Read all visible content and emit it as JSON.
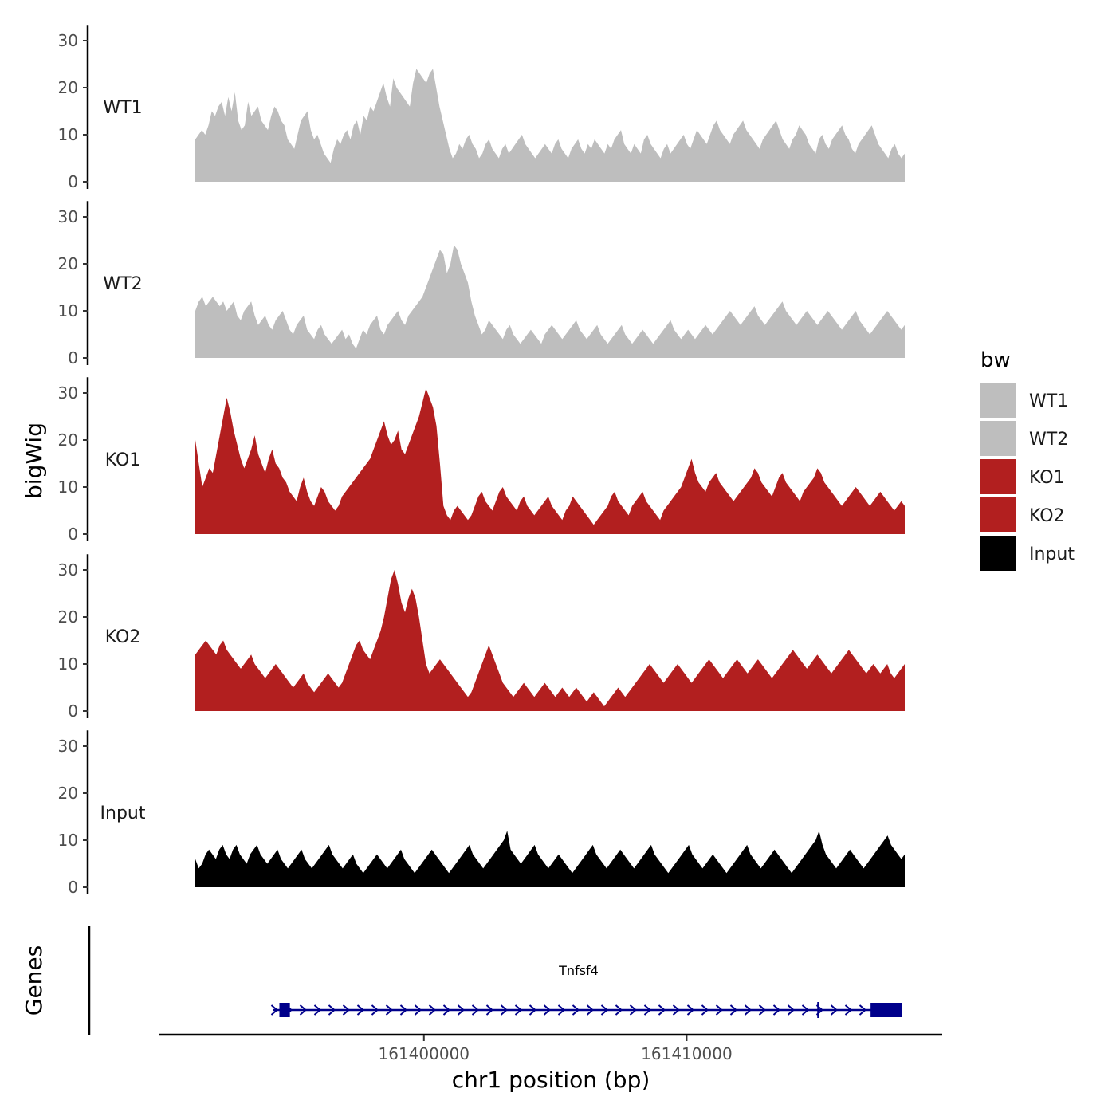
{
  "chart_data": {
    "type": "area",
    "ylabel": "bigWig",
    "xlabel": "chr1 position (bp)",
    "y_ticks": [
      "0",
      "10",
      "20",
      "30"
    ],
    "ylim": [
      0,
      33
    ],
    "x_range": [
      161391300,
      161418300
    ],
    "x_ticks": [
      {
        "value": 161400000,
        "label": "161400000"
      },
      {
        "value": 161410000,
        "label": "161410000"
      }
    ],
    "legend": {
      "title": "bw",
      "placement": "right",
      "entries": [
        {
          "label": "WT1",
          "color": "#bebebe"
        },
        {
          "label": "WT2",
          "color": "#bebebe"
        },
        {
          "label": "KO1",
          "color": "#b21f1f"
        },
        {
          "label": "KO2",
          "color": "#b21f1f"
        },
        {
          "label": "Input",
          "color": "#000000"
        }
      ]
    },
    "tracks": [
      {
        "name": "WT1",
        "color": "#bebebe",
        "values": [
          9,
          10,
          11,
          10,
          12,
          15,
          14,
          16,
          17,
          14,
          18,
          15,
          19,
          13,
          11,
          12,
          17,
          14,
          15,
          16,
          13,
          12,
          11,
          14,
          16,
          15,
          13,
          12,
          9,
          8,
          7,
          10,
          13,
          14,
          15,
          11,
          9,
          10,
          8,
          6,
          5,
          4,
          7,
          9,
          8,
          10,
          11,
          9,
          12,
          13,
          10,
          14,
          13,
          16,
          15,
          17,
          19,
          21,
          18,
          16,
          22,
          20,
          19,
          18,
          17,
          16,
          21,
          24,
          23,
          22,
          21,
          23,
          24,
          20,
          16,
          13,
          10,
          7,
          5,
          6,
          8,
          7,
          9,
          10,
          8,
          7,
          5,
          6,
          8,
          9,
          7,
          6,
          5,
          7,
          8,
          6,
          7,
          8,
          9,
          10,
          8,
          7,
          6,
          5,
          6,
          7,
          8,
          7,
          6,
          8,
          9,
          7,
          6,
          5,
          7,
          8,
          9,
          7,
          6,
          8,
          7,
          9,
          8,
          7,
          6,
          8,
          7,
          9,
          10,
          11,
          8,
          7,
          6,
          8,
          7,
          6,
          9,
          10,
          8,
          7,
          6,
          5,
          7,
          8,
          6,
          7,
          8,
          9,
          10,
          8,
          7,
          9,
          11,
          10,
          9,
          8,
          10,
          12,
          13,
          11,
          10,
          9,
          8,
          10,
          11,
          12,
          13,
          11,
          10,
          9,
          8,
          7,
          9,
          10,
          11,
          12,
          13,
          11,
          9,
          8,
          7,
          9,
          10,
          12,
          11,
          10,
          8,
          7,
          6,
          9,
          10,
          8,
          7,
          9,
          10,
          11,
          12,
          10,
          9,
          7,
          6,
          8,
          9,
          10,
          11,
          12,
          10,
          8,
          7,
          6,
          5,
          7,
          8,
          6,
          5,
          6
        ]
      },
      {
        "name": "WT2",
        "color": "#bebebe",
        "values": [
          10,
          12,
          13,
          11,
          12,
          13,
          12,
          11,
          12,
          10,
          11,
          12,
          9,
          8,
          10,
          11,
          12,
          9,
          7,
          8,
          9,
          7,
          6,
          8,
          9,
          10,
          8,
          6,
          5,
          7,
          8,
          9,
          6,
          5,
          4,
          6,
          7,
          5,
          4,
          3,
          4,
          5,
          6,
          4,
          5,
          3,
          2,
          4,
          6,
          5,
          7,
          8,
          9,
          6,
          5,
          7,
          8,
          9,
          10,
          8,
          7,
          9,
          10,
          11,
          12,
          13,
          15,
          17,
          19,
          21,
          23,
          22,
          18,
          20,
          24,
          23,
          20,
          18,
          16,
          12,
          9,
          7,
          5,
          6,
          8,
          7,
          6,
          5,
          4,
          6,
          7,
          5,
          4,
          3,
          4,
          5,
          6,
          5,
          4,
          3,
          5,
          6,
          7,
          6,
          5,
          4,
          5,
          6,
          7,
          8,
          6,
          5,
          4,
          5,
          6,
          7,
          5,
          4,
          3,
          4,
          5,
          6,
          7,
          5,
          4,
          3,
          4,
          5,
          6,
          5,
          4,
          3,
          4,
          5,
          6,
          7,
          8,
          6,
          5,
          4,
          5,
          6,
          5,
          4,
          5,
          6,
          7,
          6,
          5,
          6,
          7,
          8,
          9,
          10,
          9,
          8,
          7,
          8,
          9,
          10,
          11,
          9,
          8,
          7,
          8,
          9,
          10,
          11,
          12,
          10,
          9,
          8,
          7,
          8,
          9,
          10,
          9,
          8,
          7,
          8,
          9,
          10,
          9,
          8,
          7,
          6,
          7,
          8,
          9,
          10,
          8,
          7,
          6,
          5,
          6,
          7,
          8,
          9,
          10,
          9,
          8,
          7,
          6,
          7
        ]
      },
      {
        "name": "KO1",
        "color": "#b21f1f",
        "values": [
          20,
          15,
          10,
          12,
          14,
          13,
          17,
          21,
          25,
          29,
          26,
          22,
          19,
          16,
          14,
          16,
          18,
          21,
          17,
          15,
          13,
          16,
          18,
          15,
          14,
          12,
          11,
          9,
          8,
          7,
          10,
          12,
          9,
          7,
          6,
          8,
          10,
          9,
          7,
          6,
          5,
          6,
          8,
          9,
          10,
          11,
          12,
          13,
          14,
          15,
          16,
          18,
          20,
          22,
          24,
          21,
          19,
          20,
          22,
          18,
          17,
          19,
          21,
          23,
          25,
          28,
          31,
          29,
          27,
          23,
          15,
          6,
          4,
          3,
          5,
          6,
          5,
          4,
          3,
          4,
          6,
          8,
          9,
          7,
          6,
          5,
          7,
          9,
          10,
          8,
          7,
          6,
          5,
          7,
          8,
          6,
          5,
          4,
          5,
          6,
          7,
          8,
          6,
          5,
          4,
          3,
          5,
          6,
          8,
          7,
          6,
          5,
          4,
          3,
          2,
          3,
          4,
          5,
          6,
          8,
          9,
          7,
          6,
          5,
          4,
          6,
          7,
          8,
          9,
          7,
          6,
          5,
          4,
          3,
          5,
          6,
          7,
          8,
          9,
          10,
          12,
          14,
          16,
          13,
          11,
          10,
          9,
          11,
          12,
          13,
          11,
          10,
          9,
          8,
          7,
          8,
          9,
          10,
          11,
          12,
          14,
          13,
          11,
          10,
          9,
          8,
          10,
          12,
          13,
          11,
          10,
          9,
          8,
          7,
          9,
          10,
          11,
          12,
          14,
          13,
          11,
          10,
          9,
          8,
          7,
          6,
          7,
          8,
          9,
          10,
          9,
          8,
          7,
          6,
          7,
          8,
          9,
          8,
          7,
          6,
          5,
          6,
          7,
          6
        ]
      },
      {
        "name": "KO2",
        "color": "#b21f1f",
        "values": [
          12,
          13,
          14,
          15,
          14,
          13,
          12,
          14,
          15,
          13,
          12,
          11,
          10,
          9,
          10,
          11,
          12,
          10,
          9,
          8,
          7,
          8,
          9,
          10,
          9,
          8,
          7,
          6,
          5,
          6,
          7,
          8,
          6,
          5,
          4,
          5,
          6,
          7,
          8,
          7,
          6,
          5,
          6,
          8,
          10,
          12,
          14,
          15,
          13,
          12,
          11,
          13,
          15,
          17,
          20,
          24,
          28,
          30,
          27,
          23,
          21,
          24,
          26,
          24,
          20,
          15,
          10,
          8,
          9,
          10,
          11,
          10,
          9,
          8,
          7,
          6,
          5,
          4,
          3,
          4,
          6,
          8,
          10,
          12,
          14,
          12,
          10,
          8,
          6,
          5,
          4,
          3,
          4,
          5,
          6,
          5,
          4,
          3,
          4,
          5,
          6,
          5,
          4,
          3,
          4,
          5,
          4,
          3,
          4,
          5,
          4,
          3,
          2,
          3,
          4,
          3,
          2,
          1,
          2,
          3,
          4,
          5,
          4,
          3,
          4,
          5,
          6,
          7,
          8,
          9,
          10,
          9,
          8,
          7,
          6,
          7,
          8,
          9,
          10,
          9,
          8,
          7,
          6,
          7,
          8,
          9,
          10,
          11,
          10,
          9,
          8,
          7,
          8,
          9,
          10,
          11,
          10,
          9,
          8,
          9,
          10,
          11,
          10,
          9,
          8,
          7,
          8,
          9,
          10,
          11,
          12,
          13,
          12,
          11,
          10,
          9,
          10,
          11,
          12,
          11,
          10,
          9,
          8,
          9,
          10,
          11,
          12,
          13,
          12,
          11,
          10,
          9,
          8,
          9,
          10,
          9,
          8,
          9,
          10,
          8,
          7,
          8,
          9,
          10
        ]
      },
      {
        "name": "Input",
        "color": "#000000",
        "values": [
          6,
          4,
          5,
          7,
          8,
          7,
          6,
          8,
          9,
          7,
          6,
          8,
          9,
          7,
          6,
          5,
          7,
          8,
          9,
          7,
          6,
          5,
          6,
          7,
          8,
          6,
          5,
          4,
          5,
          6,
          7,
          8,
          6,
          5,
          4,
          5,
          6,
          7,
          8,
          9,
          7,
          6,
          5,
          4,
          5,
          6,
          7,
          5,
          4,
          3,
          4,
          5,
          6,
          7,
          6,
          5,
          4,
          5,
          6,
          7,
          8,
          6,
          5,
          4,
          3,
          4,
          5,
          6,
          7,
          8,
          7,
          6,
          5,
          4,
          3,
          4,
          5,
          6,
          7,
          8,
          9,
          7,
          6,
          5,
          4,
          5,
          6,
          7,
          8,
          9,
          10,
          12,
          8,
          7,
          6,
          5,
          6,
          7,
          8,
          9,
          7,
          6,
          5,
          4,
          5,
          6,
          7,
          6,
          5,
          4,
          3,
          4,
          5,
          6,
          7,
          8,
          9,
          7,
          6,
          5,
          4,
          5,
          6,
          7,
          8,
          7,
          6,
          5,
          4,
          5,
          6,
          7,
          8,
          9,
          7,
          6,
          5,
          4,
          3,
          4,
          5,
          6,
          7,
          8,
          9,
          7,
          6,
          5,
          4,
          5,
          6,
          7,
          6,
          5,
          4,
          3,
          4,
          5,
          6,
          7,
          8,
          9,
          7,
          6,
          5,
          4,
          5,
          6,
          7,
          8,
          7,
          6,
          5,
          4,
          3,
          4,
          5,
          6,
          7,
          8,
          9,
          10,
          12,
          9,
          7,
          6,
          5,
          4,
          5,
          6,
          7,
          8,
          7,
          6,
          5,
          4,
          5,
          6,
          7,
          8,
          9,
          10,
          11,
          9,
          8,
          7,
          6,
          7
        ]
      }
    ],
    "gene_track": {
      "label": "Genes",
      "gene_name": "Tnfsf4",
      "strand": "+",
      "color": "#00008b",
      "start": 161394500,
      "end": 161418200,
      "exons": [
        [
          161394500,
          161394900
        ],
        [
          161417000,
          161418200
        ]
      ],
      "exon_marks": [
        161415000
      ]
    }
  }
}
